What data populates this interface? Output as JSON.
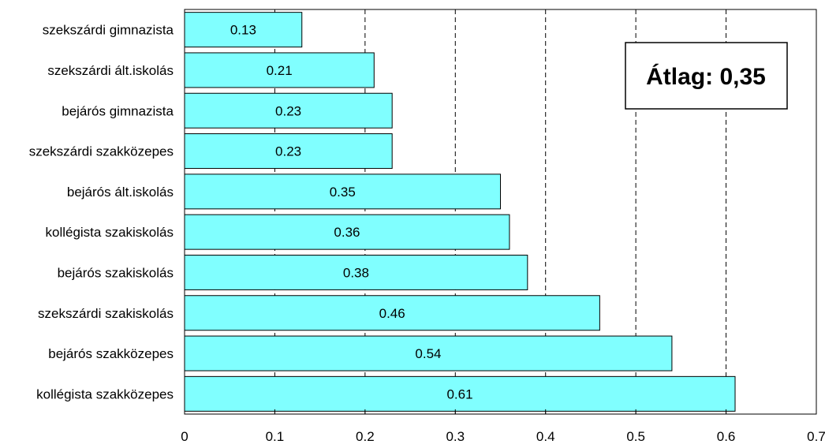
{
  "chart_data": {
    "type": "bar",
    "orientation": "horizontal",
    "categories": [
      "szekszárdi gimnazista",
      "szekszárdi ált.iskolás",
      "bejárós gimnazista",
      "szekszárdi szakközepes",
      "bejárós ált.iskolás",
      "kollégista szakiskolás",
      "bejárós szakiskolás",
      "szekszárdi szakiskolás",
      "bejárós szakközepes",
      "kollégista szakközepes"
    ],
    "values": [
      0.13,
      0.21,
      0.23,
      0.23,
      0.35,
      0.36,
      0.38,
      0.46,
      0.54,
      0.61
    ],
    "value_labels": [
      "0.13",
      "0.21",
      "0.23",
      "0.23",
      "0.35",
      "0.36",
      "0.38",
      "0.46",
      "0.54",
      "0.61"
    ],
    "xlim": [
      0,
      0.7
    ],
    "xticks": [
      0,
      0.1,
      0.2,
      0.3,
      0.4,
      0.5,
      0.6,
      0.7
    ],
    "xtick_labels": [
      "0",
      "0.1",
      "0.2",
      "0.3",
      "0.4",
      "0.5",
      "0.6",
      "0.7"
    ],
    "grid": "vertical dashed",
    "bar_color": "#80ffff",
    "annotation": "Átlag: 0,35",
    "title": "",
    "xlabel": "",
    "ylabel": ""
  }
}
